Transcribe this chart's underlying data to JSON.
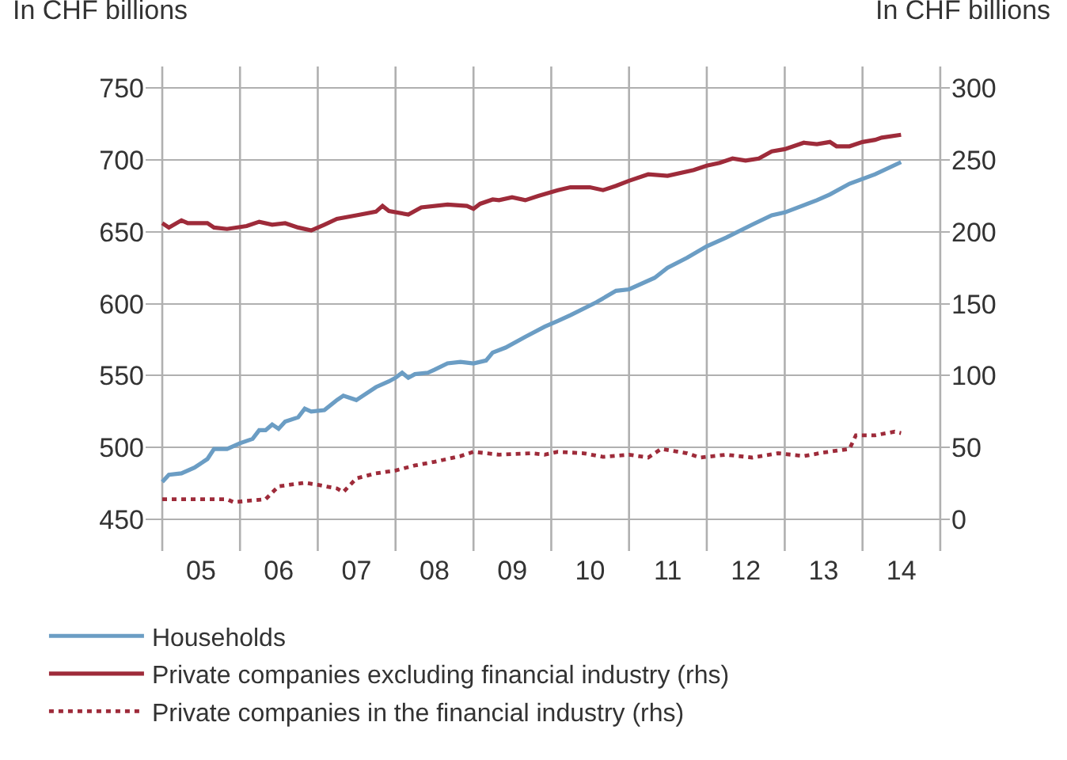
{
  "chart_data": {
    "type": "line",
    "ylabel": "In CHF billions",
    "y2label": "In CHF billions",
    "xlim": [
      "2004-10-15",
      "2015-02-15"
    ],
    "xticks": [
      {
        "value": "2005-01-01",
        "label": null
      },
      {
        "value": "2005-07-02",
        "label": "05"
      },
      {
        "value": "2006-01-01",
        "label": null
      },
      {
        "value": "2006-07-02",
        "label": "06"
      },
      {
        "value": "2007-01-01",
        "label": null
      },
      {
        "value": "2007-07-02",
        "label": "07"
      },
      {
        "value": "2008-01-01",
        "label": null
      },
      {
        "value": "2008-07-02",
        "label": "08"
      },
      {
        "value": "2009-01-01",
        "label": null
      },
      {
        "value": "2009-07-02",
        "label": "09"
      },
      {
        "value": "2010-01-01",
        "label": null
      },
      {
        "value": "2010-07-02",
        "label": "10"
      },
      {
        "value": "2011-01-01",
        "label": null
      },
      {
        "value": "2011-07-02",
        "label": "11"
      },
      {
        "value": "2012-01-01",
        "label": null
      },
      {
        "value": "2012-07-02",
        "label": "12"
      },
      {
        "value": "2013-01-01",
        "label": null
      },
      {
        "value": "2013-07-02",
        "label": "13"
      },
      {
        "value": "2014-01-01",
        "label": null
      },
      {
        "value": "2014-07-02",
        "label": "14"
      },
      {
        "value": "2015-01-01",
        "label": null
      }
    ],
    "ylim": [
      428,
      765
    ],
    "yticks": [
      450,
      500,
      550,
      600,
      650,
      700,
      750
    ],
    "y2lim": [
      -22,
      315
    ],
    "y2ticks": [
      0,
      50,
      100,
      150,
      200,
      250,
      300
    ],
    "grid": true,
    "legend": "bottom",
    "series": [
      {
        "name": "Households",
        "color": "#6b9dc4",
        "line_style": "solid",
        "x": [
          "2005-01",
          "2005-02",
          "2005-04",
          "2005-06",
          "2005-08",
          "2005-09",
          "2005-11",
          "2006-01",
          "2006-03",
          "2006-04",
          "2006-05",
          "2006-06",
          "2006-07",
          "2006-08",
          "2006-10",
          "2006-11",
          "2006-12",
          "2007-02",
          "2007-04",
          "2007-05",
          "2007-07",
          "2007-08",
          "2007-10",
          "2007-12",
          "2008-01",
          "2008-02",
          "2008-03",
          "2008-04",
          "2008-06",
          "2008-07",
          "2008-09",
          "2008-11",
          "2009-01",
          "2009-03",
          "2009-04",
          "2009-06",
          "2009-09",
          "2009-12",
          "2010-02",
          "2010-04",
          "2010-08",
          "2010-11",
          "2011-01",
          "2011-05",
          "2011-07",
          "2011-10",
          "2012-01",
          "2012-04",
          "2012-08",
          "2012-11",
          "2013-01",
          "2013-06",
          "2013-08",
          "2013-11",
          "2014-03",
          "2014-07"
        ],
        "values": [
          476,
          481,
          482,
          486,
          492,
          499,
          499,
          503,
          506,
          512,
          512,
          516,
          513,
          518,
          521,
          527,
          525,
          526,
          533,
          536,
          533,
          536,
          542,
          546,
          548.5,
          552,
          548.5,
          551,
          552,
          554,
          558.5,
          559.5,
          558.5,
          560.5,
          566,
          569.5,
          577,
          584,
          588,
          592,
          601,
          609,
          610,
          618,
          625,
          632,
          640,
          646,
          655,
          661.5,
          663.5,
          672,
          676,
          683.5,
          690,
          698.5
        ]
      },
      {
        "name": "Private companies excluding financial industry (rhs)",
        "color": "#9e2b3a",
        "line_style": "solid",
        "axis": "y2",
        "x": [
          "2005-01",
          "2005-02",
          "2005-04",
          "2005-05",
          "2005-08",
          "2005-09",
          "2005-11",
          "2006-02",
          "2006-04",
          "2006-06",
          "2006-08",
          "2006-10",
          "2006-12",
          "2007-02",
          "2007-04",
          "2007-07",
          "2007-10",
          "2007-11",
          "2007-12",
          "2008-03",
          "2008-05",
          "2008-09",
          "2008-12",
          "2009-01",
          "2009-02",
          "2009-04",
          "2009-05",
          "2009-07",
          "2009-09",
          "2009-11",
          "2010-02",
          "2010-04",
          "2010-07",
          "2010-09",
          "2010-11",
          "2011-01",
          "2011-04",
          "2011-07",
          "2011-11",
          "2012-01",
          "2012-03",
          "2012-05",
          "2012-07",
          "2012-09",
          "2012-11",
          "2013-01",
          "2013-04",
          "2013-06",
          "2013-08",
          "2013-09",
          "2013-11",
          "2014-01",
          "2014-03",
          "2014-04",
          "2014-07"
        ],
        "values": [
          206,
          203,
          208,
          206,
          206,
          203,
          202,
          204,
          207,
          205,
          206,
          203,
          201,
          205,
          209,
          211.5,
          214,
          218,
          214.5,
          212,
          217,
          219,
          218,
          216,
          219.5,
          222.5,
          222,
          224,
          222,
          225,
          229,
          231,
          231,
          229,
          232,
          235.5,
          240,
          239,
          243,
          246,
          248,
          251,
          249.5,
          251,
          256,
          257.5,
          262,
          261,
          262.5,
          259.5,
          259.5,
          262.5,
          264,
          265.5,
          267.5
        ]
      },
      {
        "name": "Private companies in the financial industry (rhs)",
        "color": "#9e2b3a",
        "line_style": "dotted",
        "axis": "y2",
        "x": [
          "2005-01",
          "2005-06",
          "2005-11",
          "2005-12",
          "2006-05",
          "2006-07",
          "2006-11",
          "2007-01",
          "2007-04",
          "2007-05",
          "2007-07",
          "2007-10",
          "2008-01",
          "2008-04",
          "2008-07",
          "2008-11",
          "2009-01",
          "2009-05",
          "2009-10",
          "2009-12",
          "2010-02",
          "2010-06",
          "2010-09",
          "2011-01",
          "2011-04",
          "2011-06",
          "2011-10",
          "2011-12",
          "2012-04",
          "2012-08",
          "2012-12",
          "2013-04",
          "2013-07",
          "2013-11",
          "2013-12",
          "2014-03",
          "2014-06",
          "2014-07"
        ],
        "values": [
          14,
          14,
          14,
          12,
          14,
          23,
          25.5,
          24,
          21.5,
          19,
          28.5,
          32,
          34,
          37.5,
          40,
          44,
          47,
          45,
          46,
          45,
          47,
          46,
          43.5,
          45,
          43,
          49,
          46,
          43,
          45,
          43,
          46,
          44,
          46.5,
          49,
          58.5,
          58.5,
          61,
          60
        ]
      }
    ]
  }
}
